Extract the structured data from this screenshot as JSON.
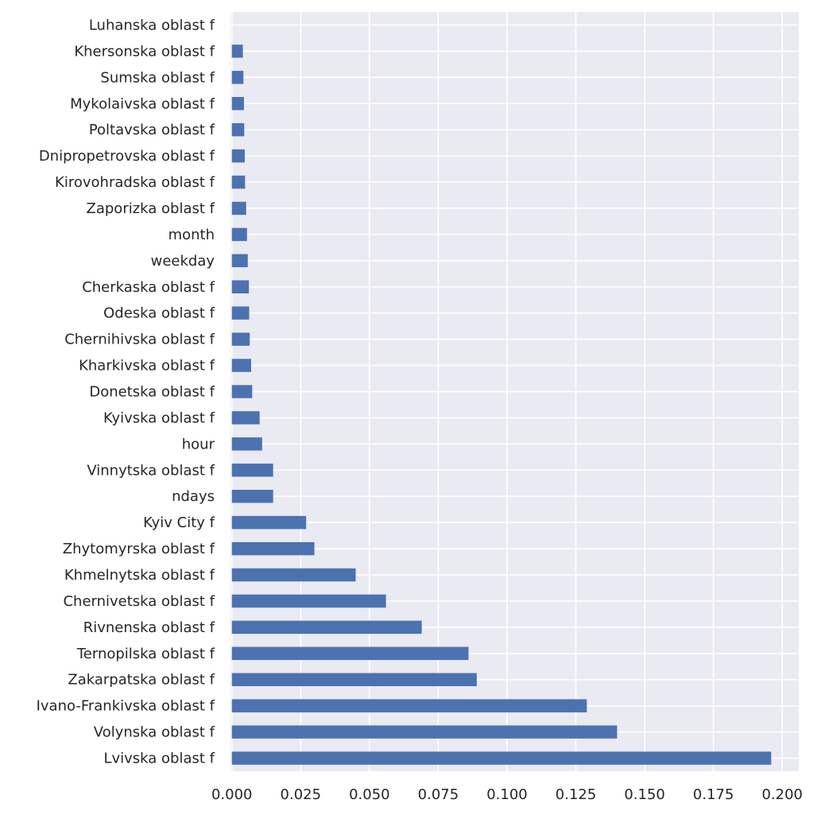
{
  "chart_data": {
    "type": "bar",
    "orientation": "horizontal",
    "categories": [
      "Lvivska oblast f",
      "Volynska oblast f",
      "Ivano-Frankivska oblast f",
      "Zakarpatska oblast f",
      "Ternopilska oblast f",
      "Rivnenska oblast f",
      "Chernivetska oblast f",
      "Khmelnytska oblast f",
      "Zhytomyrska oblast f",
      "Kyiv City f",
      "ndays",
      "Vinnytska oblast f",
      "hour",
      "Kyivska oblast f",
      "Donetska oblast f",
      "Kharkivska oblast f",
      "Chernihivska oblast f",
      "Odeska oblast f",
      "Cherkaska oblast f",
      "weekday",
      "month",
      "Zaporizka oblast f",
      "Kirovohradska oblast f",
      "Dnipropetrovska oblast f",
      "Poltavska oblast f",
      "Mykolaivska oblast f",
      "Sumska oblast f",
      "Khersonska oblast f",
      "Luhanska oblast f"
    ],
    "values": [
      0.196,
      0.14,
      0.129,
      0.089,
      0.086,
      0.069,
      0.056,
      0.045,
      0.03,
      0.027,
      0.015,
      0.015,
      0.011,
      0.0101,
      0.0074,
      0.007,
      0.0065,
      0.0063,
      0.0062,
      0.0058,
      0.0055,
      0.0052,
      0.0048,
      0.0047,
      0.0045,
      0.0044,
      0.0042,
      0.004,
      0.0
    ],
    "xlim": [
      -0.0005,
      0.206
    ],
    "xticks": [
      "0.000",
      "0.025",
      "0.050",
      "0.075",
      "0.100",
      "0.125",
      "0.150",
      "0.175",
      "0.200"
    ],
    "grid": true,
    "colors": {
      "bar": "#4C72B0",
      "background": "#EAEAF2",
      "grid": "#FFFFFF",
      "text": "#262626"
    }
  }
}
